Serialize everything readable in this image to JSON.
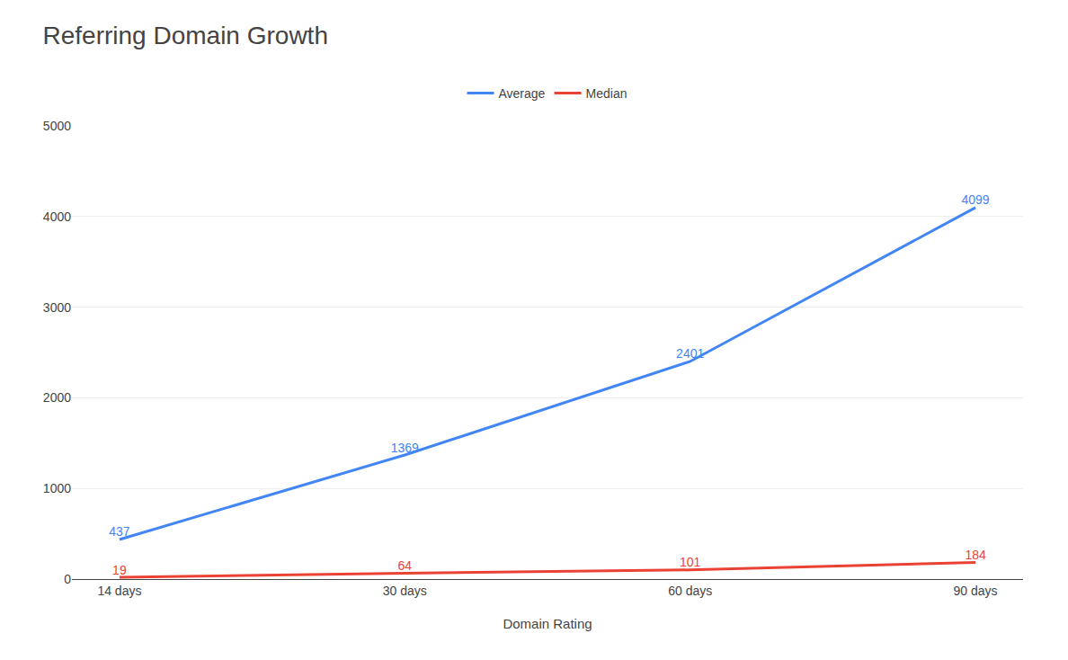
{
  "chart_data": {
    "type": "line",
    "title": "Referring Domain Growth",
    "xlabel": "Domain Rating",
    "categories": [
      "14 days",
      "30 days",
      "60 days",
      "90 days"
    ],
    "series": [
      {
        "name": "Average",
        "color": "#4285F4",
        "values": [
          437,
          1369,
          2401,
          4099
        ]
      },
      {
        "name": "Median",
        "color": "#EA4335",
        "values": [
          19,
          64,
          101,
          184
        ]
      }
    ],
    "ylim": [
      0,
      5000
    ],
    "yticks": [
      0,
      1000,
      2000,
      3000,
      4000,
      5000
    ],
    "grid": true,
    "legend": "top",
    "data_labels": true
  }
}
